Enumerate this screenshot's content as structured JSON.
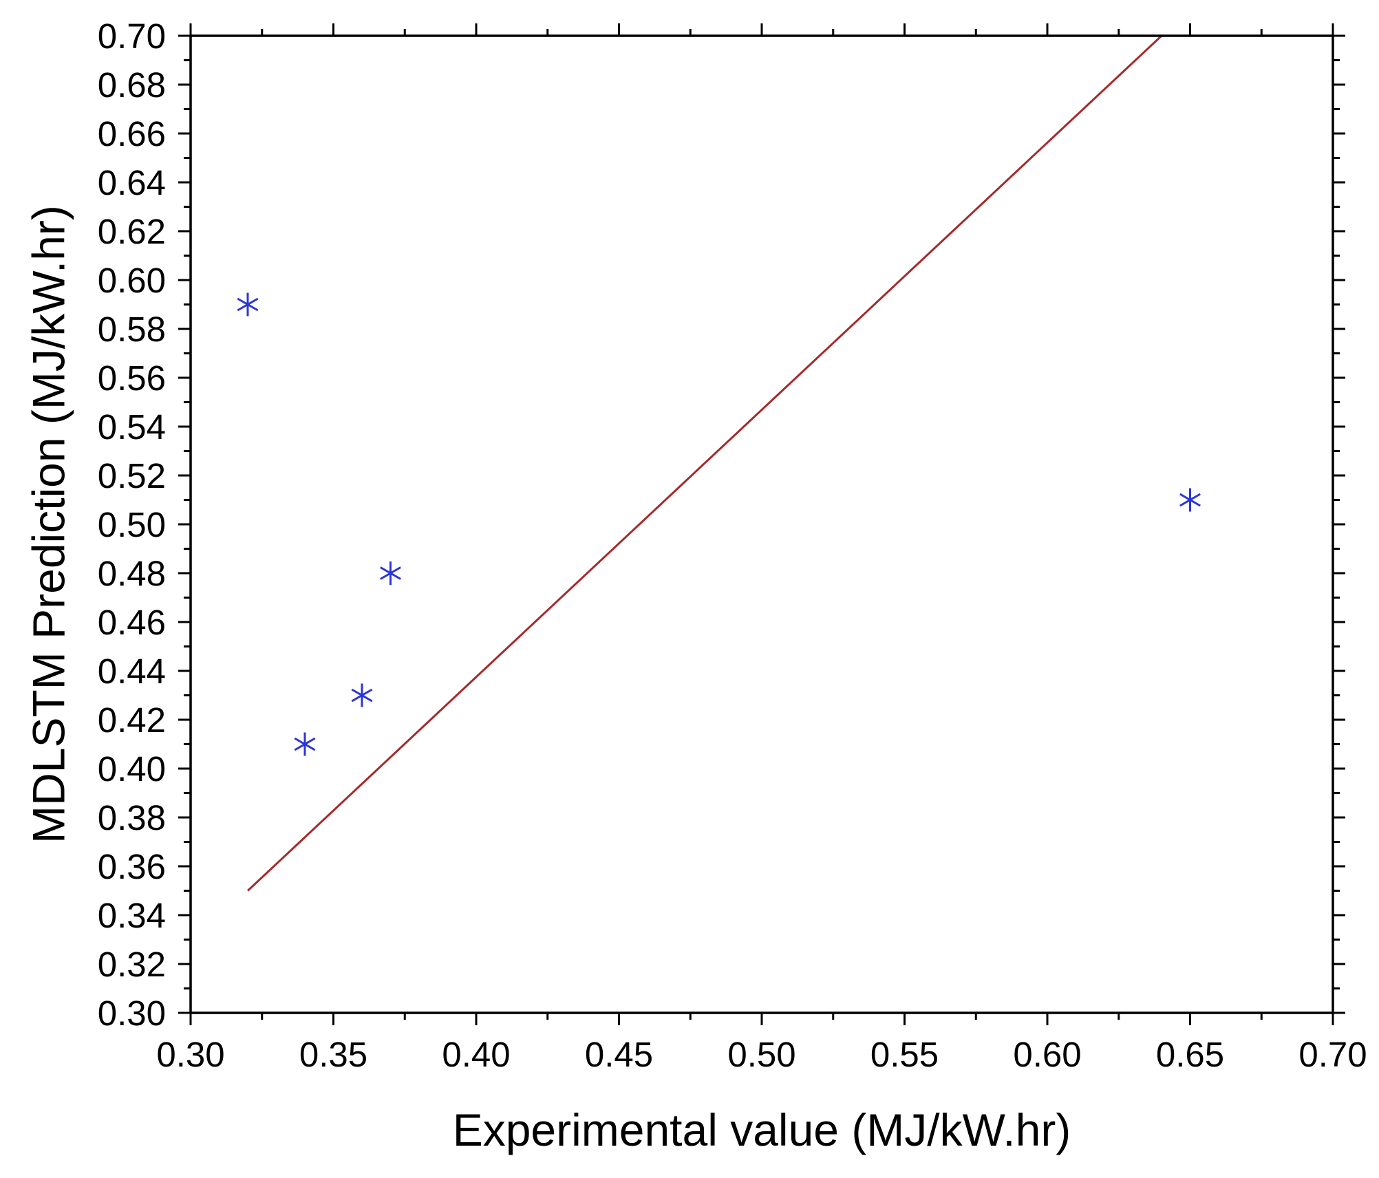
{
  "chart_data": {
    "type": "scatter",
    "title": "",
    "xlabel": "Experimental value (MJ/kW.hr)",
    "ylabel": "MDLSTM Prediction (MJ/kW.hr)",
    "xlim": [
      0.3,
      0.7
    ],
    "ylim": [
      0.3,
      0.7
    ],
    "grid": false,
    "x_ticks": [
      "0.30",
      "0.35",
      "0.40",
      "0.45",
      "0.50",
      "0.55",
      "0.60",
      "0.65",
      "0.70"
    ],
    "y_ticks": [
      "0.30",
      "0.32",
      "0.34",
      "0.36",
      "0.38",
      "0.40",
      "0.42",
      "0.44",
      "0.46",
      "0.48",
      "0.50",
      "0.52",
      "0.54",
      "0.56",
      "0.58",
      "0.60",
      "0.62",
      "0.64",
      "0.66",
      "0.68",
      "0.70"
    ],
    "series": [
      {
        "name": "MDLSTM Prediction",
        "marker": "asterisk",
        "color": "#2b35d8",
        "x": [
          0.32,
          0.34,
          0.36,
          0.37,
          0.65
        ],
        "y": [
          0.59,
          0.41,
          0.43,
          0.48,
          0.51
        ]
      }
    ],
    "reference_line": {
      "name": "Fit line",
      "color": "#a52a2a",
      "x": [
        0.32,
        0.64
      ],
      "y": [
        0.35,
        0.7
      ]
    }
  }
}
